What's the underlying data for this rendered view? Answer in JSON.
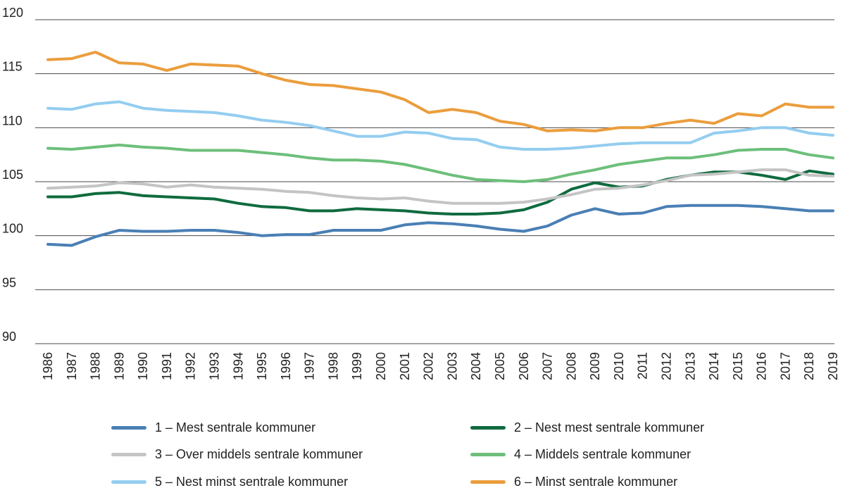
{
  "chart_data": {
    "type": "line",
    "title": "",
    "xlabel": "",
    "ylabel": "",
    "ylim": [
      90,
      120
    ],
    "yticks": [
      90,
      95,
      100,
      105,
      110,
      115,
      120
    ],
    "grid": true,
    "legend_position": "bottom",
    "x": [
      "1986",
      "1987",
      "1988",
      "1989",
      "1990",
      "1991",
      "1992",
      "1993",
      "1994",
      "1995",
      "1996",
      "1997",
      "1998",
      "1999",
      "2000",
      "2001",
      "2002",
      "2003",
      "2004",
      "2005",
      "2006",
      "2007",
      "2008",
      "2009",
      "2010",
      "2011",
      "2012",
      "2013",
      "2014",
      "2015",
      "2016",
      "2017",
      "2018",
      "2019"
    ],
    "series": [
      {
        "name": "1 – Mest sentrale kommuner",
        "color": "#4a7fb5",
        "values": [
          99.2,
          99.1,
          99.9,
          100.5,
          100.4,
          100.4,
          100.5,
          100.5,
          100.3,
          100.0,
          100.1,
          100.1,
          100.5,
          100.5,
          100.5,
          101.0,
          101.2,
          101.1,
          100.9,
          100.6,
          100.4,
          100.9,
          101.9,
          102.5,
          102.0,
          102.1,
          102.7,
          102.8,
          102.8,
          102.8,
          102.7,
          102.5,
          102.3,
          102.3
        ]
      },
      {
        "name": "2 – Nest mest sentrale kommuner",
        "color": "#0f6b3e",
        "values": [
          103.6,
          103.6,
          103.9,
          104.0,
          103.7,
          103.6,
          103.5,
          103.4,
          103.0,
          102.7,
          102.6,
          102.3,
          102.3,
          102.5,
          102.4,
          102.3,
          102.1,
          102.0,
          102.0,
          102.1,
          102.4,
          103.1,
          104.3,
          104.9,
          104.5,
          104.6,
          105.2,
          105.6,
          105.9,
          105.9,
          105.6,
          105.2,
          106.0,
          105.7
        ]
      },
      {
        "name": "3 – Over middels sentrale kommuner",
        "color": "#c4c4c4",
        "values": [
          104.4,
          104.5,
          104.6,
          104.9,
          104.8,
          104.5,
          104.7,
          104.5,
          104.4,
          104.3,
          104.1,
          104.0,
          103.7,
          103.5,
          103.4,
          103.5,
          103.2,
          103.0,
          103.0,
          103.0,
          103.1,
          103.4,
          103.8,
          104.3,
          104.4,
          104.7,
          105.1,
          105.6,
          105.7,
          105.9,
          106.1,
          106.1,
          105.6,
          105.5
        ]
      },
      {
        "name": "4 – Middels sentrale kommuner",
        "color": "#6dbf7a",
        "values": [
          108.1,
          108.0,
          108.2,
          108.4,
          108.2,
          108.1,
          107.9,
          107.9,
          107.9,
          107.7,
          107.5,
          107.2,
          107.0,
          107.0,
          106.9,
          106.6,
          106.1,
          105.6,
          105.2,
          105.1,
          105.0,
          105.2,
          105.7,
          106.1,
          106.6,
          106.9,
          107.2,
          107.2,
          107.5,
          107.9,
          108.0,
          108.0,
          107.5,
          107.2
        ]
      },
      {
        "name": "5 – Nest minst sentrale kommuner",
        "color": "#93cdf0",
        "values": [
          111.8,
          111.7,
          112.2,
          112.4,
          111.8,
          111.6,
          111.5,
          111.4,
          111.1,
          110.7,
          110.5,
          110.2,
          109.7,
          109.2,
          109.2,
          109.6,
          109.5,
          109.0,
          108.9,
          108.2,
          108.0,
          108.0,
          108.1,
          108.3,
          108.5,
          108.6,
          108.6,
          108.6,
          109.5,
          109.7,
          110.0,
          110.0,
          109.5,
          109.3
        ]
      },
      {
        "name": "6 – Minst sentrale kommuner",
        "color": "#eb9d3c",
        "values": [
          116.3,
          116.4,
          117.0,
          116.0,
          115.9,
          115.3,
          115.9,
          115.8,
          115.7,
          115.0,
          114.4,
          114.0,
          113.9,
          113.6,
          113.3,
          112.6,
          111.4,
          111.7,
          111.4,
          110.6,
          110.3,
          109.7,
          109.8,
          109.7,
          110.0,
          110.0,
          110.4,
          110.7,
          110.4,
          111.3,
          111.1,
          112.2,
          111.9,
          111.9
        ]
      }
    ]
  }
}
